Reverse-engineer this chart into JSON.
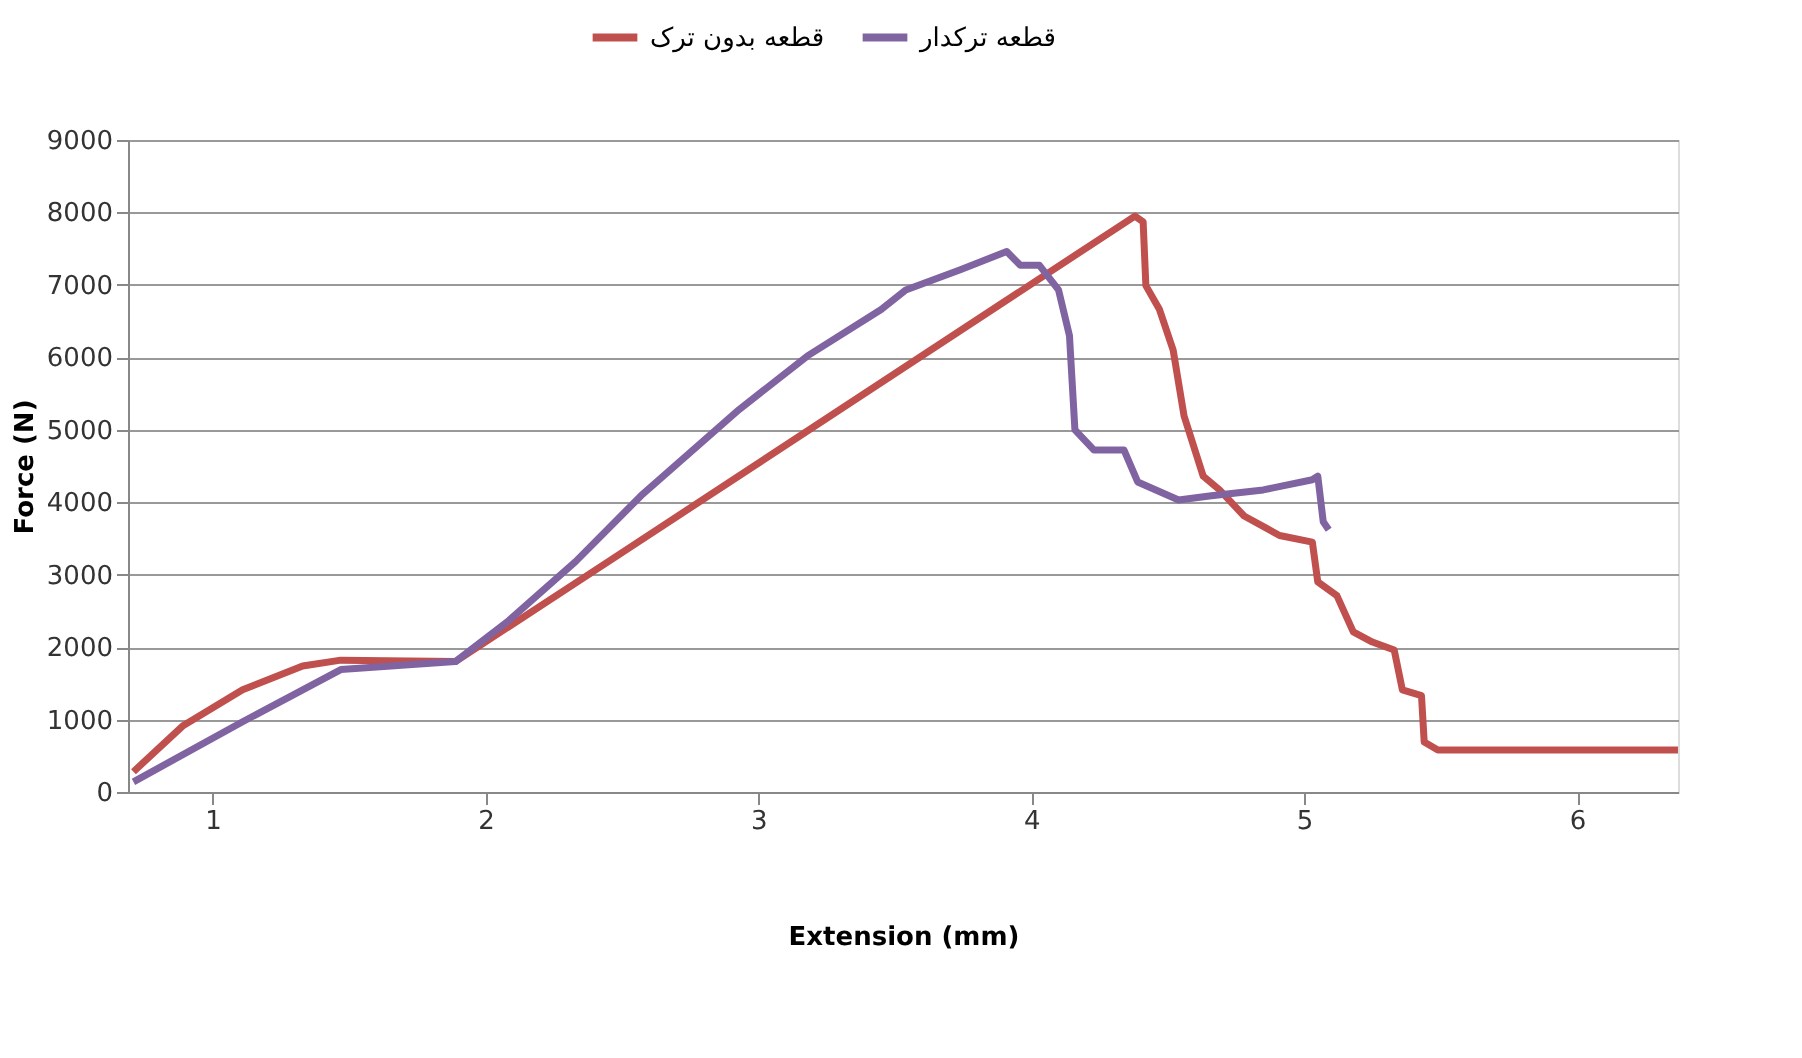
{
  "chart_data": {
    "type": "line",
    "xlabel": "Extension (mm)",
    "ylabel": "Force (N)",
    "xlim": [
      0.69,
      6.37
    ],
    "xticks": [
      1,
      2,
      3,
      4,
      5,
      6
    ],
    "ylim": [
      0,
      9000
    ],
    "yticks": [
      0,
      1000,
      2000,
      3000,
      4000,
      5000,
      6000,
      7000,
      8000,
      9000
    ],
    "grid": "y",
    "legend": "top",
    "marker": "none",
    "line_style": "solid",
    "series": [
      {
        "name": "قطعه بدون ترک",
        "color": "#c0504d",
        "x": [
          0.71,
          0.89,
          1.11,
          1.33,
          1.47,
          1.89,
          2.45,
          4.38,
          4.41,
          4.42,
          4.47,
          4.52,
          4.56,
          4.63,
          4.69,
          4.78,
          4.91,
          5.03,
          5.05,
          5.12,
          5.18,
          5.25,
          5.33,
          5.36,
          5.43,
          5.44,
          5.49,
          6.37
        ],
        "values": [
          280,
          910,
          1410,
          1740,
          1820,
          1800,
          3180,
          7950,
          7870,
          6990,
          6660,
          6100,
          5190,
          4360,
          4170,
          3810,
          3540,
          3450,
          2900,
          2710,
          2210,
          2070,
          1960,
          1410,
          1330,
          690,
          580,
          580
        ]
      },
      {
        "name": "قطعه ترکدار",
        "color": "#8064a2",
        "x": [
          0.71,
          1.11,
          1.47,
          1.89,
          2.08,
          2.33,
          2.57,
          2.93,
          3.18,
          3.45,
          3.54,
          3.74,
          3.91,
          3.96,
          4.03,
          4.1,
          4.14,
          4.16,
          4.23,
          4.34,
          4.39,
          4.54,
          4.66,
          4.85,
          5.03,
          5.05,
          5.07,
          5.09
        ],
        "values": [
          140,
          970,
          1690,
          1800,
          2350,
          3180,
          4090,
          5280,
          6020,
          6660,
          6930,
          7210,
          7460,
          7270,
          7270,
          6930,
          6300,
          5000,
          4720,
          4720,
          4280,
          4030,
          4090,
          4170,
          4310,
          4360,
          3730,
          3620
        ]
      }
    ]
  }
}
